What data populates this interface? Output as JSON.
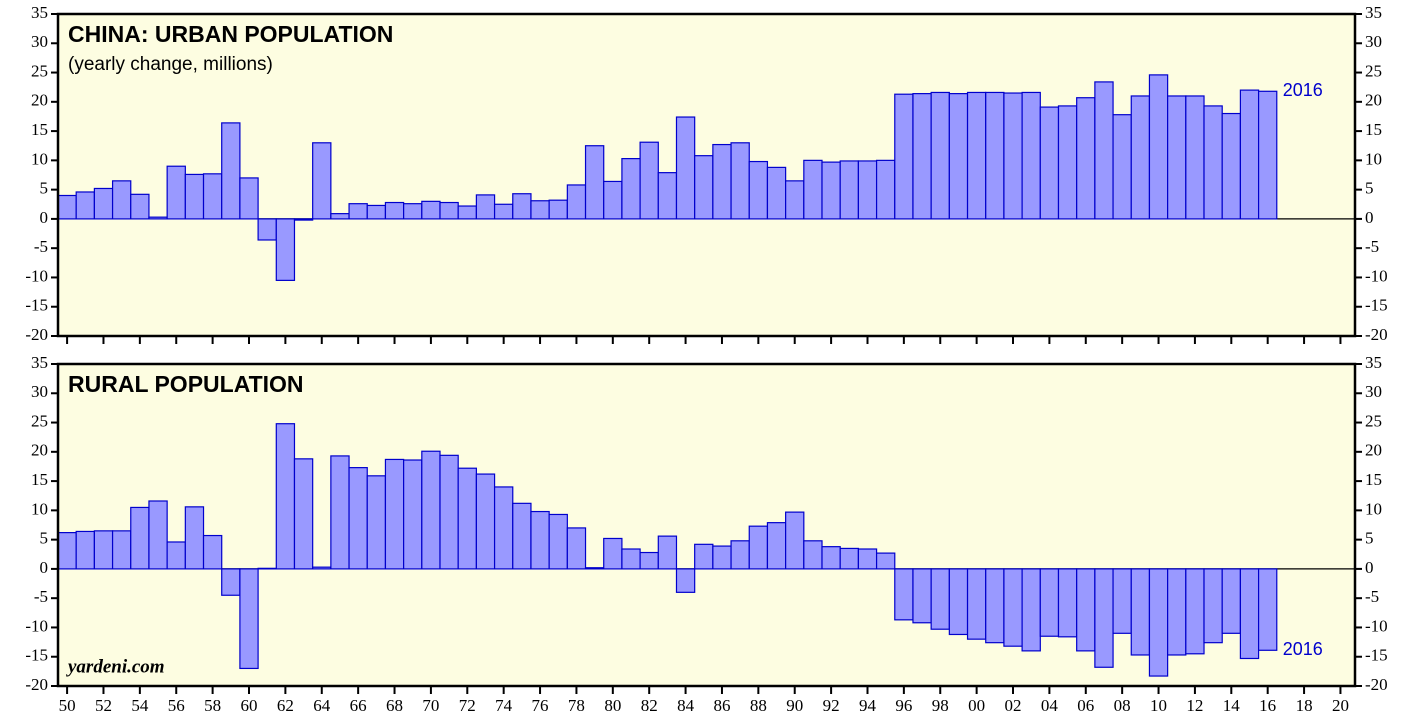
{
  "chart_data": [
    {
      "type": "bar",
      "title": "CHINA: URBAN POPULATION",
      "subtitle": "(yearly change, millions)",
      "annotation": "2016",
      "x": [
        1950,
        1951,
        1952,
        1953,
        1954,
        1955,
        1956,
        1957,
        1958,
        1959,
        1960,
        1961,
        1962,
        1963,
        1964,
        1965,
        1966,
        1967,
        1968,
        1969,
        1970,
        1971,
        1972,
        1973,
        1974,
        1975,
        1976,
        1977,
        1978,
        1979,
        1980,
        1981,
        1982,
        1983,
        1984,
        1985,
        1986,
        1987,
        1988,
        1989,
        1990,
        1991,
        1992,
        1993,
        1994,
        1995,
        1996,
        1997,
        1998,
        1999,
        2000,
        2001,
        2002,
        2003,
        2004,
        2005,
        2006,
        2007,
        2008,
        2009,
        2010,
        2011,
        2012,
        2013,
        2014,
        2015,
        2016
      ],
      "values": [
        4.0,
        4.6,
        5.2,
        6.5,
        4.2,
        0.3,
        9.0,
        7.6,
        7.7,
        16.4,
        7.0,
        -3.6,
        -10.5,
        -0.2,
        13.0,
        0.9,
        2.6,
        2.3,
        2.8,
        2.6,
        3.0,
        2.8,
        2.2,
        4.1,
        2.5,
        4.3,
        3.1,
        3.2,
        5.8,
        12.5,
        6.4,
        10.3,
        13.1,
        7.9,
        17.4,
        10.8,
        12.7,
        13.0,
        9.8,
        8.8,
        6.5,
        10.0,
        9.7,
        9.9,
        9.9,
        10.0,
        21.3,
        21.4,
        21.6,
        21.4,
        21.6,
        21.6,
        21.5,
        21.6,
        19.1,
        19.3,
        20.7,
        23.4,
        17.8,
        21.0,
        24.6,
        21.0,
        21.0,
        19.3,
        18.0,
        22.0,
        21.8
      ],
      "color": "#9999ff",
      "edgecolor": "#0000cc",
      "background": "#fdfde1",
      "xlim": [
        1949.5,
        2020.8
      ],
      "ylim": [
        -20,
        35
      ],
      "yticks": [
        -20,
        -15,
        -10,
        -5,
        0,
        5,
        10,
        15,
        20,
        25,
        30,
        35
      ]
    },
    {
      "type": "bar",
      "title": "RURAL POPULATION",
      "annotation": "2016",
      "source": "yardeni.com",
      "x": [
        1950,
        1951,
        1952,
        1953,
        1954,
        1955,
        1956,
        1957,
        1958,
        1959,
        1960,
        1961,
        1962,
        1963,
        1964,
        1965,
        1966,
        1967,
        1968,
        1969,
        1970,
        1971,
        1972,
        1973,
        1974,
        1975,
        1976,
        1977,
        1978,
        1979,
        1980,
        1981,
        1982,
        1983,
        1984,
        1985,
        1986,
        1987,
        1988,
        1989,
        1990,
        1991,
        1992,
        1993,
        1994,
        1995,
        1996,
        1997,
        1998,
        1999,
        2000,
        2001,
        2002,
        2003,
        2004,
        2005,
        2006,
        2007,
        2008,
        2009,
        2010,
        2011,
        2012,
        2013,
        2014,
        2015,
        2016
      ],
      "values": [
        6.2,
        6.4,
        6.5,
        6.5,
        10.5,
        11.6,
        4.6,
        10.6,
        5.7,
        -4.5,
        -17.0,
        0.1,
        24.8,
        18.8,
        0.3,
        19.3,
        17.3,
        15.9,
        18.7,
        18.6,
        20.1,
        19.4,
        17.2,
        16.2,
        14.0,
        11.2,
        9.8,
        9.3,
        7.0,
        0.2,
        5.2,
        3.4,
        2.8,
        5.6,
        -4.0,
        4.2,
        3.9,
        4.8,
        7.3,
        7.9,
        9.7,
        4.8,
        3.8,
        3.5,
        3.4,
        2.7,
        -8.7,
        -9.2,
        -10.3,
        -11.2,
        -12.0,
        -12.6,
        -13.2,
        -14.0,
        -11.5,
        -11.6,
        -14.0,
        -16.8,
        -11.0,
        -14.7,
        -18.3,
        -14.7,
        -14.5,
        -12.6,
        -11.0,
        -15.3,
        -13.9
      ],
      "color": "#9999ff",
      "edgecolor": "#0000cc",
      "background": "#fdfde1",
      "xlim": [
        1949.5,
        2020.8
      ],
      "ylim": [
        -20,
        35
      ],
      "yticks": [
        -20,
        -15,
        -10,
        -5,
        0,
        5,
        10,
        15,
        20,
        25,
        30,
        35
      ],
      "xticks": [
        {
          "value": 1950,
          "label": "50"
        },
        {
          "value": 1952,
          "label": "52"
        },
        {
          "value": 1954,
          "label": "54"
        },
        {
          "value": 1956,
          "label": "56"
        },
        {
          "value": 1958,
          "label": "58"
        },
        {
          "value": 1960,
          "label": "60"
        },
        {
          "value": 1962,
          "label": "62"
        },
        {
          "value": 1964,
          "label": "64"
        },
        {
          "value": 1966,
          "label": "66"
        },
        {
          "value": 1968,
          "label": "68"
        },
        {
          "value": 1970,
          "label": "70"
        },
        {
          "value": 1972,
          "label": "72"
        },
        {
          "value": 1974,
          "label": "74"
        },
        {
          "value": 1976,
          "label": "76"
        },
        {
          "value": 1978,
          "label": "78"
        },
        {
          "value": 1980,
          "label": "80"
        },
        {
          "value": 1982,
          "label": "82"
        },
        {
          "value": 1984,
          "label": "84"
        },
        {
          "value": 1986,
          "label": "86"
        },
        {
          "value": 1988,
          "label": "88"
        },
        {
          "value": 1990,
          "label": "90"
        },
        {
          "value": 1992,
          "label": "92"
        },
        {
          "value": 1994,
          "label": "94"
        },
        {
          "value": 1996,
          "label": "96"
        },
        {
          "value": 1998,
          "label": "98"
        },
        {
          "value": 2000,
          "label": "00"
        },
        {
          "value": 2002,
          "label": "02"
        },
        {
          "value": 2004,
          "label": "04"
        },
        {
          "value": 2006,
          "label": "06"
        },
        {
          "value": 2008,
          "label": "08"
        },
        {
          "value": 2010,
          "label": "10"
        },
        {
          "value": 2012,
          "label": "12"
        },
        {
          "value": 2014,
          "label": "14"
        },
        {
          "value": 2016,
          "label": "16"
        },
        {
          "value": 2018,
          "label": "18"
        },
        {
          "value": 2020,
          "label": "20"
        }
      ]
    }
  ]
}
